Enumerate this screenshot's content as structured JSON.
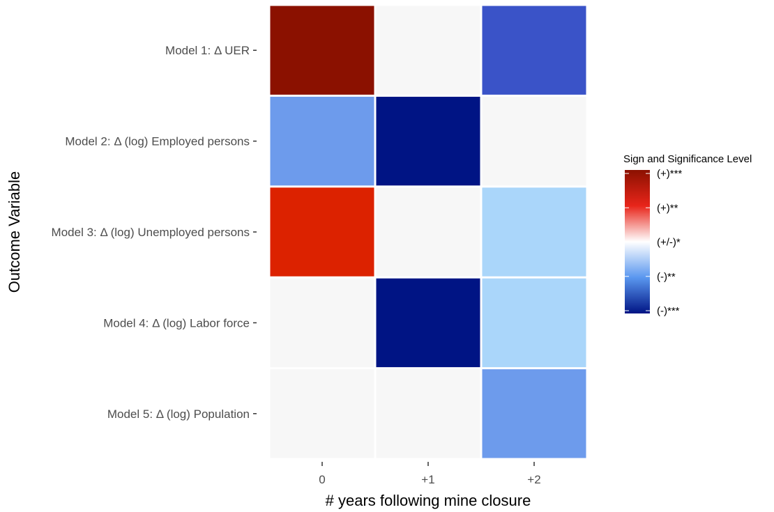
{
  "chart_data": {
    "type": "heatmap",
    "xlabel": "# years following mine closure",
    "ylabel": "Outcome Variable",
    "x_categories": [
      "0",
      "+1",
      "+2"
    ],
    "y_categories": [
      "Model 1: Δ UER",
      "Model 2: Δ (log) Employed persons",
      "Model 3: Δ (log) Unemployed persons",
      "Model 4: Δ (log) Labor force",
      "Model 5: Δ (log) Population"
    ],
    "values": [
      [
        3,
        0,
        -2
      ],
      [
        -2,
        -3,
        0
      ],
      [
        2,
        0,
        -1
      ],
      [
        0,
        -3,
        -1
      ],
      [
        0,
        0,
        -2
      ]
    ],
    "cell_colors": [
      [
        "#8b1100",
        "#f7f7f7",
        "#3a53c8"
      ],
      [
        "#6d9bec",
        "#001484",
        "#f7f7f7"
      ],
      [
        "#dc2200",
        "#f7f7f7",
        "#aad6fa"
      ],
      [
        "#f7f7f7",
        "#001484",
        "#aad6fa"
      ],
      [
        "#f7f7f7",
        "#f7f7f7",
        "#6d9bec"
      ]
    ],
    "legend": {
      "title": "Sign and Significance Level",
      "labels": [
        "(+)***",
        "(+)**",
        "(+/-)*",
        "(-)**",
        "(-)***"
      ],
      "gradient_colors": [
        "#8b1100",
        "#e8251a",
        "#ffffff",
        "#5a97ef",
        "#001484"
      ],
      "placement": "right"
    },
    "grid": false
  }
}
